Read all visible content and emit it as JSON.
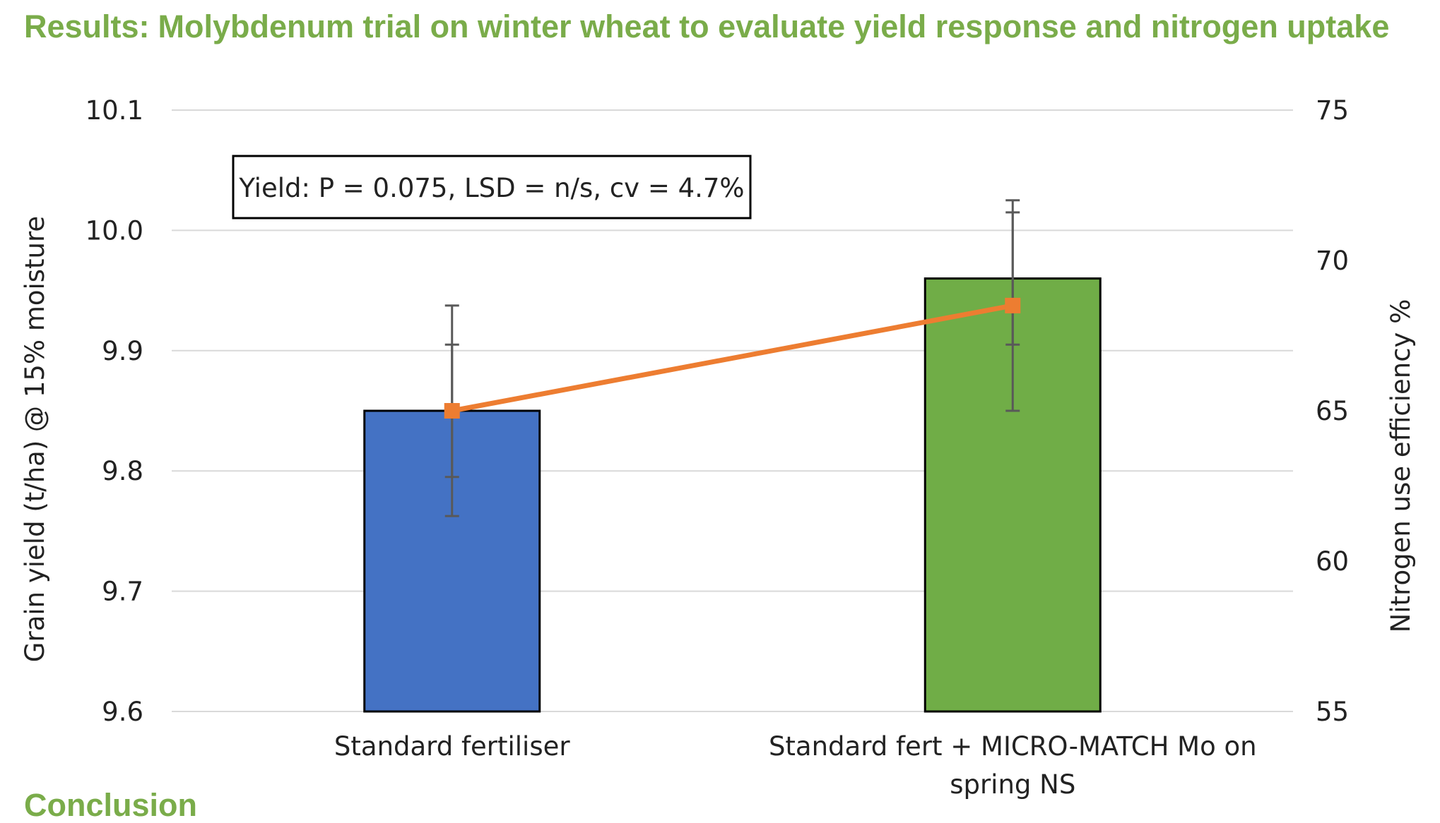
{
  "header": {
    "lead": "Results:",
    "title": "Molybdenum trial on winter wheat to evaluate yield response and nitrogen uptake"
  },
  "footer_partial": "Conclusion",
  "colors": {
    "title": "#7aac4a",
    "bar_standard": "#4472c4",
    "bar_micro_match": "#70ad47",
    "line_nue": "#ed7d31",
    "gridline": "#d9d9d9",
    "error_bar": "#595959"
  },
  "chart_data": {
    "type": "bar",
    "categories": [
      [
        "Standard fertiliser"
      ],
      [
        "Standard fert + MICRO-MATCH Mo on",
        "spring NS"
      ]
    ],
    "series": [
      {
        "axis": "left",
        "type": "bar",
        "values": [
          9.85,
          9.96
        ],
        "error": [
          0.055,
          0.055
        ]
      },
      {
        "axis": "right",
        "type": "line",
        "values": [
          65,
          68.5
        ],
        "error": [
          3.5,
          3.5
        ]
      }
    ],
    "ylabel": "Grain yield (t/ha) @ 15% moisture",
    "ylabel_right": "Nitrogen use efficiency %",
    "ylim": [
      9.6,
      10.1
    ],
    "yticks": [
      "9.6",
      "9.7",
      "9.8",
      "9.9",
      "10.0",
      "10.1"
    ],
    "ylim_right": [
      55,
      75
    ],
    "yticks_right": [
      "55",
      "60",
      "65",
      "70",
      "75"
    ],
    "grid": true,
    "legend": "none",
    "annotation": "Yield: P = 0.075, LSD = n/s, cv = 4.7%"
  }
}
